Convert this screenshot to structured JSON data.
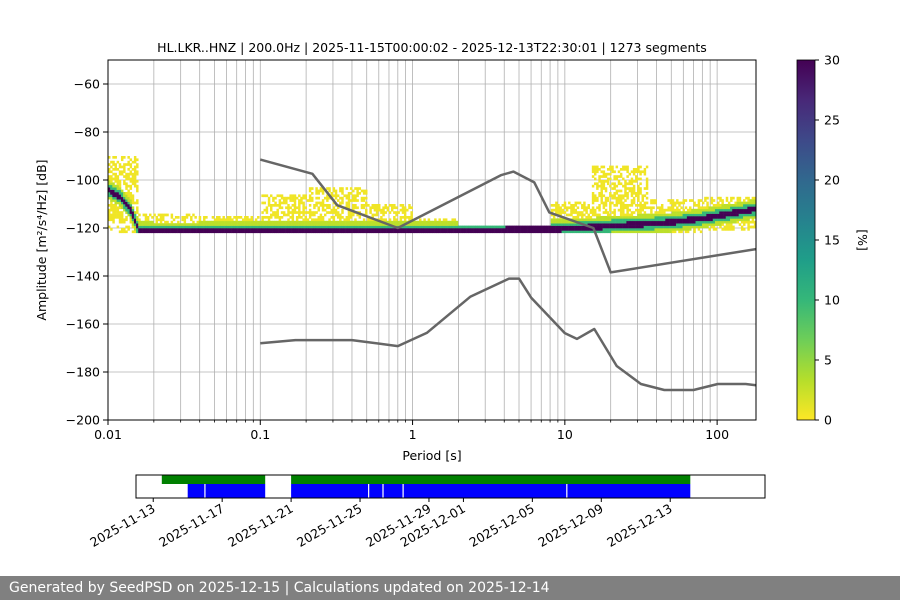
{
  "chart_data": [
    {
      "type": "heatmap",
      "title": "HL.LKR..HNZ | 200.0Hz | 2025-11-15T00:00:02 - 2025-12-13T22:30:01 | 1273 segments",
      "xlabel": "Period [s]",
      "ylabel": "Amplitude [m²/s⁴/Hz] [dB]",
      "x_scale": "log",
      "xlim": [
        0.01,
        180
      ],
      "ylim": [
        -200,
        -50
      ],
      "grid": true,
      "x_ticks": [
        0.01,
        0.1,
        1,
        10,
        100
      ],
      "x_tick_labels": [
        "0.01",
        "0.1",
        "1",
        "10",
        "100"
      ],
      "y_ticks": [
        -60,
        -80,
        -100,
        -120,
        -140,
        -160,
        -180,
        -200
      ],
      "y_tick_labels": [
        "−60",
        "−80",
        "−100",
        "−120",
        "−140",
        "−160",
        "−180",
        "−200"
      ],
      "colorbar": {
        "label": "[%]",
        "range": [
          0,
          30
        ],
        "ticks": [
          0,
          5,
          10,
          15,
          20,
          25,
          30
        ],
        "tick_labels": [
          "0",
          "5",
          "10",
          "15",
          "20",
          "25",
          "30"
        ],
        "colors": [
          "#fde725",
          "#b5de2b",
          "#6ece58",
          "#35b779",
          "#1f9e89",
          "#26828e",
          "#31688e",
          "#3e4989",
          "#482878",
          "#440154"
        ]
      },
      "mode_curve": {
        "name": "high-occupancy band",
        "x": [
          0.01,
          0.012,
          0.014,
          0.016,
          0.02,
          0.03,
          0.04,
          0.06,
          0.1,
          0.2,
          0.5,
          1,
          2,
          3,
          5,
          8,
          12,
          16,
          20,
          30,
          50,
          80,
          120,
          180
        ],
        "y": [
          -104,
          -107,
          -112,
          -121,
          -121.5,
          -121.5,
          -121.5,
          -121.3,
          -121,
          -121,
          -121,
          -121,
          -121,
          -121,
          -120.5,
          -120.5,
          -120,
          -119.5,
          -119,
          -118.5,
          -117.5,
          -116,
          -114,
          -112
        ]
      },
      "spread_regions": [
        {
          "x_from": 0.01,
          "x_to": 0.016,
          "y_low": -122,
          "y_high": -90
        },
        {
          "x_from": 0.016,
          "x_to": 0.04,
          "y_low": -122,
          "y_high": -114
        },
        {
          "x_from": 0.04,
          "x_to": 0.1,
          "y_low": -122,
          "y_high": -115
        },
        {
          "x_from": 0.1,
          "x_to": 0.2,
          "y_low": -122,
          "y_high": -106
        },
        {
          "x_from": 0.2,
          "x_to": 0.5,
          "y_low": -122,
          "y_high": -103
        },
        {
          "x_from": 0.5,
          "x_to": 1,
          "y_low": -122,
          "y_high": -110
        },
        {
          "x_from": 1,
          "x_to": 2,
          "y_low": -122,
          "y_high": -116
        },
        {
          "x_from": 2,
          "x_to": 8,
          "y_low": -122,
          "y_high": -119
        },
        {
          "x_from": 8,
          "x_to": 15,
          "y_low": -122,
          "y_high": -109
        },
        {
          "x_from": 15,
          "x_to": 35,
          "y_low": -122,
          "y_high": -94
        },
        {
          "x_from": 35,
          "x_to": 80,
          "y_low": -122,
          "y_high": -108
        },
        {
          "x_from": 80,
          "x_to": 180,
          "y_low": -121,
          "y_high": -107
        }
      ],
      "noise_models": [
        {
          "name": "high",
          "x": [
            0.1,
            0.22,
            0.32,
            0.8,
            3.8,
            4.6,
            6.3,
            7.9,
            15.4,
            20,
            180
          ],
          "y": [
            -91.5,
            -97.4,
            -110.5,
            -120,
            -98,
            -96.5,
            -101,
            -113.5,
            -120,
            -138.5,
            -128.8
          ]
        },
        {
          "name": "low",
          "x": [
            0.1,
            0.17,
            0.4,
            0.8,
            1.24,
            2.4,
            4.3,
            5,
            6,
            10,
            12,
            15.6,
            21.9,
            31.6,
            45,
            70,
            101,
            154,
            180
          ],
          "y": [
            -168,
            -166.7,
            -166.7,
            -169.2,
            -163.7,
            -148.6,
            -141.1,
            -141.1,
            -149,
            -163.8,
            -166.2,
            -162.1,
            -177.5,
            -185,
            -187.5,
            -187.5,
            -185,
            -185,
            -185.5
          ]
        }
      ]
    },
    {
      "type": "timeline",
      "x_ticks": [
        "2025-11-13",
        "2025-11-17",
        "2025-11-21",
        "2025-11-25",
        "2025-11-29",
        "2025-12-01",
        "2025-12-05",
        "2025-12-09",
        "2025-12-13"
      ],
      "xlim": [
        "2025-11-12 00:00",
        "2025-12-18 12:00"
      ],
      "bars": [
        {
          "name": "data availability",
          "color": "#008000",
          "ranges": [
            [
              "2025-11-13 12:00",
              "2025-11-19 12:00"
            ],
            [
              "2025-11-21 00:00",
              "2025-12-14 04:00"
            ]
          ]
        },
        {
          "name": "segments used",
          "color": "#0000ff",
          "ranges": [
            [
              "2025-11-15 00:00",
              "2025-11-19 12:00"
            ],
            [
              "2025-11-21 00:00",
              "2025-12-14 04:00"
            ]
          ]
        }
      ],
      "gaps": [
        "2025-11-16 00:00",
        "2025-11-25 12:00",
        "2025-11-26 08:00",
        "2025-11-27 12:00",
        "2025-12-07 00:00"
      ]
    }
  ],
  "footer": {
    "text": "Generated by SeedPSD on 2025-12-15 | Calculations updated on 2025-12-14"
  }
}
